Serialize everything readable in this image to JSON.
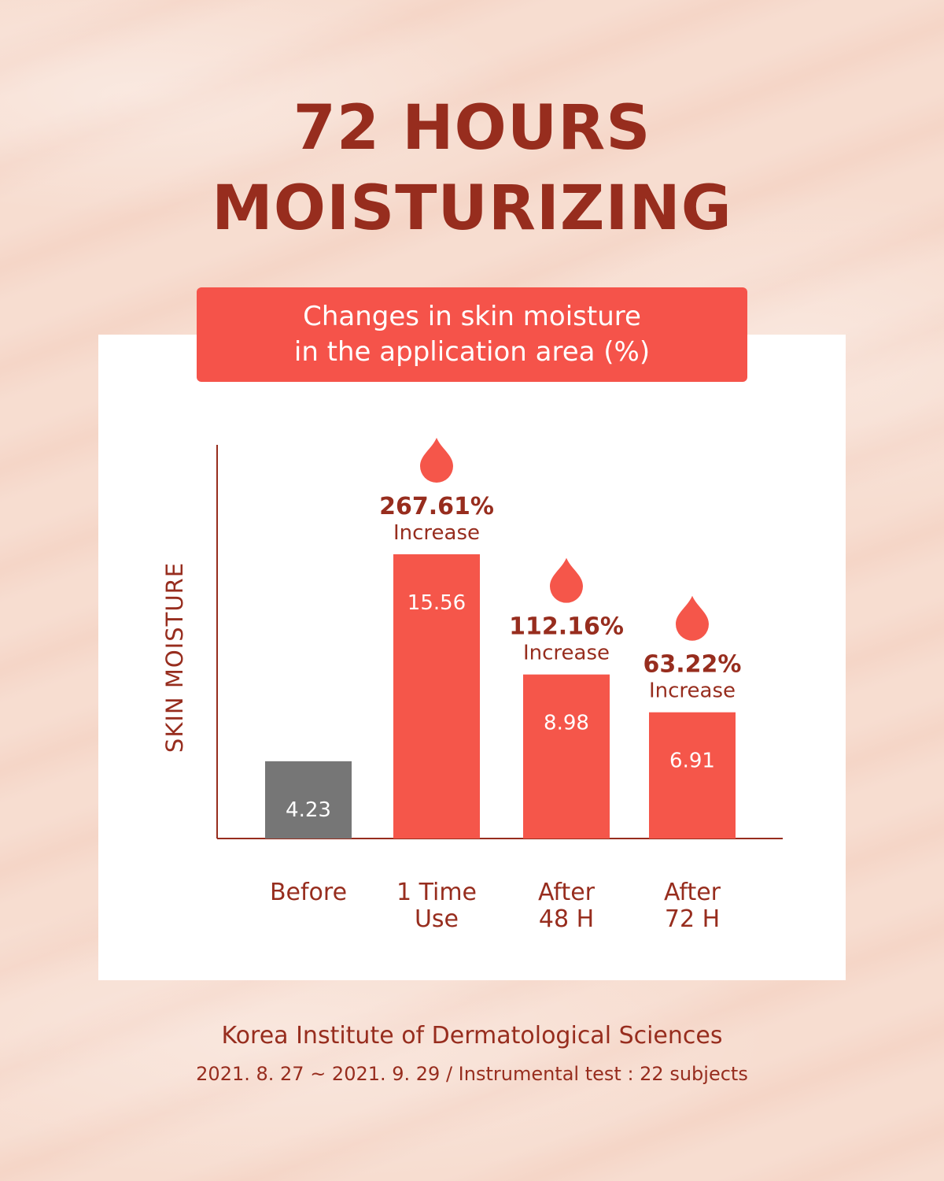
{
  "headline": {
    "line1": "72 HOURS",
    "line2": "MOISTURIZING"
  },
  "chart_data": {
    "type": "bar",
    "title_line1": "Changes in skin moisture",
    "title_line2": "in the application area (%)",
    "ylabel": "SKIN MOISTURE",
    "xlabel": "",
    "categories": [
      [
        "Before"
      ],
      [
        "1 Time",
        "Use"
      ],
      [
        "After",
        "48 H"
      ],
      [
        "After",
        "72 H"
      ]
    ],
    "values": [
      4.23,
      15.56,
      8.98,
      6.91
    ],
    "value_labels": [
      "4.23",
      "15.56",
      "8.98",
      "6.91"
    ],
    "annotations": [
      null,
      {
        "percent": "267.61%",
        "text": "Increase"
      },
      {
        "percent": "112.16%",
        "text": "Increase"
      },
      {
        "percent": "63.22%",
        "text": "Increase"
      }
    ],
    "bar_colors": [
      "#767676",
      "#f5564a",
      "#f5564a",
      "#f5564a"
    ],
    "ylim": [
      0,
      22
    ],
    "grid": false,
    "legend": "none"
  },
  "footer": {
    "organization": "Korea Institute of Dermatological Sciences",
    "note": "2021. 8. 27 ~ 2021. 9. 29 / Instrumental test : 22 subjects"
  },
  "colors": {
    "brand_dark_red": "#972d1e",
    "accent_coral": "#f5534a",
    "background_peach": "#f6d9cb",
    "baseline_gray": "#767676"
  }
}
